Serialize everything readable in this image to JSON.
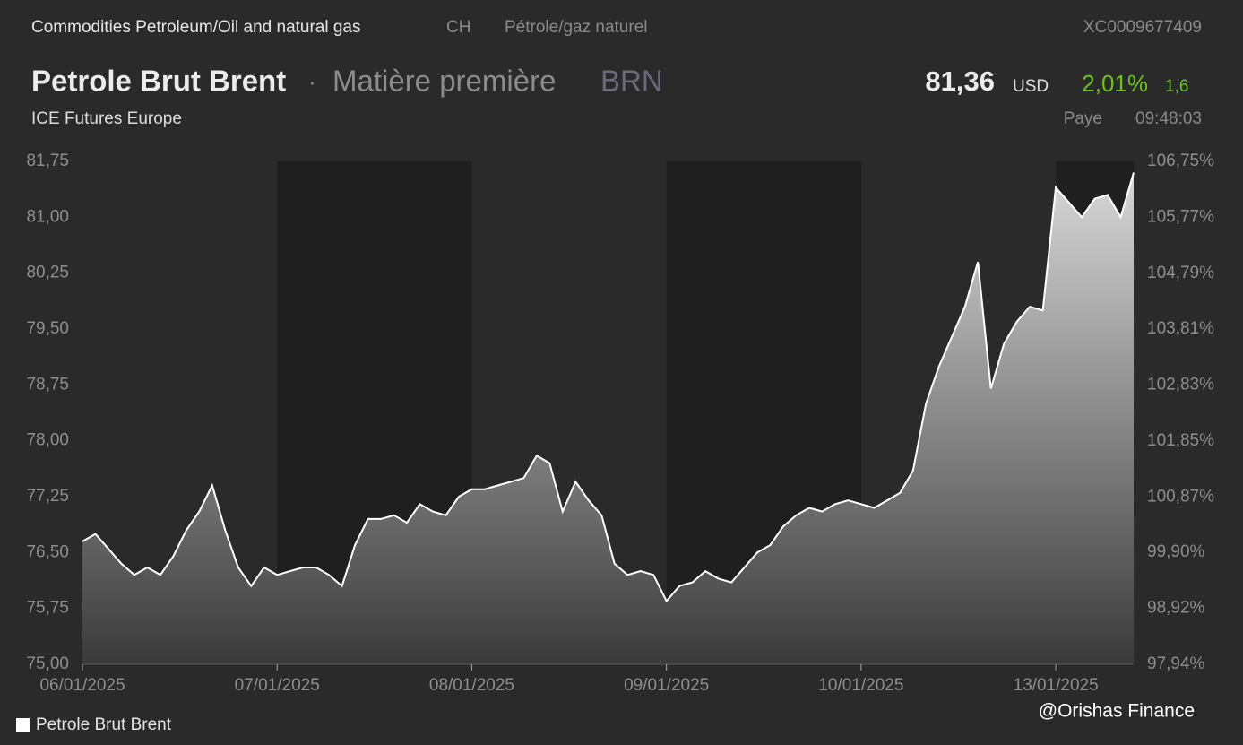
{
  "header": {
    "breadcrumb": "Commodities Petroleum/Oil and natural gas",
    "country": "CH",
    "category": "Pétrole/gaz naturel",
    "isin": "XC0009677409",
    "name": "Petrole Brut Brent",
    "separator": "·",
    "kind": "Matière première",
    "ticker": "BRN",
    "price": "81,36",
    "currency": "USD",
    "change_pct": "2,01%",
    "change": "1,6",
    "exchange": "ICE Futures Europe",
    "status": "Paye",
    "time": "09:48:03"
  },
  "chart_data": {
    "type": "area",
    "x": [
      "06/01/2025",
      null,
      null,
      null,
      null,
      null,
      null,
      null,
      null,
      null,
      null,
      null,
      null,
      null,
      null,
      "07/01/2025",
      null,
      null,
      null,
      null,
      null,
      null,
      null,
      null,
      null,
      null,
      null,
      null,
      null,
      null,
      "08/01/2025",
      null,
      null,
      null,
      null,
      null,
      null,
      null,
      null,
      null,
      null,
      null,
      null,
      null,
      null,
      "09/01/2025",
      null,
      null,
      null,
      null,
      null,
      null,
      null,
      null,
      null,
      null,
      null,
      null,
      null,
      null,
      "10/01/2025",
      null,
      null,
      null,
      null,
      null,
      null,
      null,
      null,
      null,
      null,
      null,
      null,
      null,
      null,
      "13/01/2025",
      null,
      null,
      null,
      null,
      null,
      null
    ],
    "series": [
      {
        "name": "Petrole Brut Brent",
        "color": "#ffffff",
        "values": [
          76.65,
          76.75,
          76.55,
          76.35,
          76.2,
          76.3,
          76.2,
          76.45,
          76.8,
          77.05,
          77.4,
          76.8,
          76.3,
          76.05,
          76.3,
          76.2,
          76.25,
          76.3,
          76.3,
          76.2,
          76.05,
          76.6,
          76.95,
          76.95,
          77.0,
          76.9,
          77.15,
          77.05,
          77.0,
          77.25,
          77.35,
          77.35,
          77.4,
          77.45,
          77.5,
          77.8,
          77.7,
          77.05,
          77.45,
          77.2,
          77.0,
          76.35,
          76.2,
          76.25,
          76.2,
          75.85,
          76.05,
          76.1,
          76.25,
          76.15,
          76.1,
          76.3,
          76.5,
          76.6,
          76.85,
          77.0,
          77.1,
          77.05,
          77.15,
          77.2,
          77.15,
          77.1,
          77.2,
          77.3,
          77.6,
          78.5,
          79.0,
          79.4,
          79.8,
          80.4,
          78.7,
          79.3,
          79.6,
          79.8,
          79.75,
          81.4,
          81.2,
          81.0,
          81.25,
          81.3,
          81.0,
          81.6
        ]
      }
    ],
    "ylim": [
      75,
      81.75
    ],
    "yticks": [
      {
        "value": 75,
        "label": "75,00"
      },
      {
        "value": 75.75,
        "label": "75,75"
      },
      {
        "value": 76.5,
        "label": "76,50"
      },
      {
        "value": 77.25,
        "label": "77,25"
      },
      {
        "value": 78,
        "label": "78,00"
      },
      {
        "value": 78.75,
        "label": "78,75"
      },
      {
        "value": 79.5,
        "label": "79,50"
      },
      {
        "value": 80.25,
        "label": "80,25"
      },
      {
        "value": 81,
        "label": "81,00"
      },
      {
        "value": 81.75,
        "label": "81,75"
      }
    ],
    "y2lim": [
      97.94,
      106.75
    ],
    "y2ticks": [
      {
        "value": 97.94,
        "label": "97,94%"
      },
      {
        "value": 98.92,
        "label": "98,92%"
      },
      {
        "value": 99.9,
        "label": "99,90%"
      },
      {
        "value": 100.87,
        "label": "100,87%"
      },
      {
        "value": 101.85,
        "label": "101,85%"
      },
      {
        "value": 102.83,
        "label": "102,83%"
      },
      {
        "value": 103.81,
        "label": "103,81%"
      },
      {
        "value": 104.79,
        "label": "104,79%"
      },
      {
        "value": 105.77,
        "label": "105,77%"
      },
      {
        "value": 106.75,
        "label": "106,75%"
      }
    ],
    "watermark": "@Orishas Finance"
  }
}
